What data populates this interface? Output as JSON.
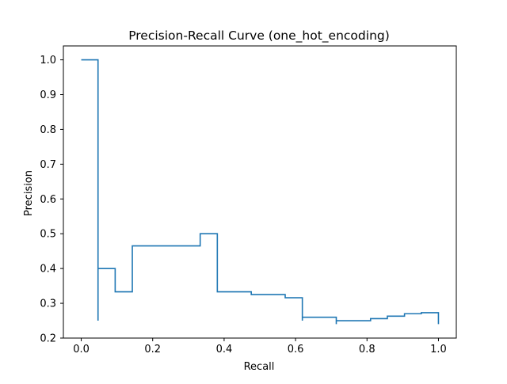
{
  "chart_data": {
    "type": "line",
    "title": "Precision-Recall Curve (one_hot_encoding)",
    "xlabel": "Recall",
    "ylabel": "Precision",
    "xlim": [
      -0.05,
      1.05
    ],
    "ylim": [
      0.2,
      1.04
    ],
    "xticks": [
      0.0,
      0.2,
      0.4,
      0.6,
      0.8,
      1.0
    ],
    "xtick_labels": [
      "0.0",
      "0.2",
      "0.4",
      "0.6",
      "0.8",
      "1.0"
    ],
    "yticks": [
      0.2,
      0.3,
      0.4,
      0.5,
      0.6,
      0.7,
      0.8,
      0.9,
      1.0
    ],
    "ytick_labels": [
      "0.2",
      "0.3",
      "0.4",
      "0.5",
      "0.6",
      "0.7",
      "0.8",
      "0.9",
      "1.0"
    ],
    "grid": false,
    "legend": "none",
    "line_color": "#1f77b4",
    "drawstyle": "steps-post",
    "series": [
      {
        "recall": [
          0.0,
          0.047,
          0.047,
          0.047,
          0.095,
          0.143,
          0.333,
          0.381,
          0.476,
          0.571,
          0.619,
          0.619,
          0.714,
          0.714,
          0.81,
          0.857,
          0.905,
          0.952,
          1.0,
          1.0
        ],
        "precision": [
          1.0,
          1.0,
          0.25,
          0.4,
          0.333,
          0.465,
          0.5,
          0.333,
          0.325,
          0.316,
          0.25,
          0.26,
          0.24,
          0.25,
          0.256,
          0.263,
          0.27,
          0.273,
          0.273,
          0.24
        ]
      }
    ]
  }
}
